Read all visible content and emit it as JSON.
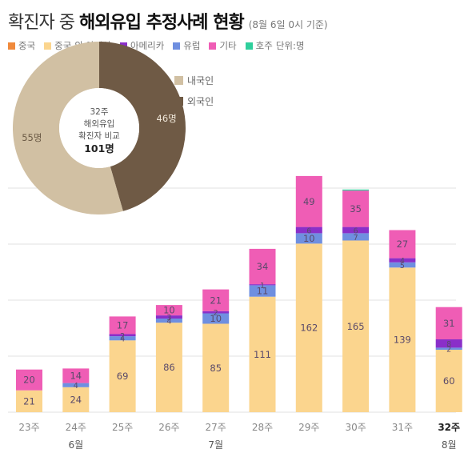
{
  "title": {
    "part1": "확진자 중",
    "part2": "해외유입 추정사례 현황",
    "note": "(8월 6일 0시 기준)"
  },
  "colors": {
    "china": "#f08a3c",
    "asia": "#fbd58e",
    "americas": "#8a2fc9",
    "europe": "#6f8fe0",
    "other": "#ef5db5",
    "oceania": "#2fcf9c",
    "domestic": "#d1c0a3",
    "foreign": "#6f5a45",
    "grid": "#e2e2e2",
    "label": "#666666"
  },
  "chart_data": [
    {
      "type": "bar",
      "stacked": true,
      "categories": [
        "23주",
        "24주",
        "25주",
        "26주",
        "27주",
        "28주",
        "29주",
        "30주",
        "31주",
        "32주"
      ],
      "month_labels": [
        {
          "label": "6월",
          "under": "24주"
        },
        {
          "label": "7월",
          "under": "27주"
        },
        {
          "label": "8월",
          "under": "32주"
        }
      ],
      "series": [
        {
          "name": "중국",
          "color_key": "china",
          "values": [
            0,
            0,
            0,
            0,
            0,
            0,
            0,
            0,
            0,
            0
          ]
        },
        {
          "name": "중국 외 아시아",
          "color_key": "asia",
          "values": [
            21,
            24,
            69,
            86,
            85,
            111,
            162,
            165,
            139,
            60
          ]
        },
        {
          "name": "아메리카",
          "color_key": "americas",
          "values": [
            0,
            0,
            2,
            3,
            2,
            1,
            6,
            6,
            4,
            8
          ]
        },
        {
          "name": "유럽",
          "color_key": "europe",
          "values": [
            0,
            4,
            4,
            4,
            10,
            11,
            10,
            7,
            5,
            2
          ]
        },
        {
          "name": "기타",
          "color_key": "other",
          "values": [
            20,
            14,
            17,
            10,
            21,
            34,
            49,
            35,
            27,
            31
          ]
        },
        {
          "name": "호주",
          "color_key": "oceania",
          "values": [
            0,
            0,
            0,
            0,
            0,
            0,
            0,
            1,
            0,
            0
          ]
        }
      ],
      "data_labels": [
        [
          "21",
          "",
          "",
          "20"
        ],
        [
          "24",
          "",
          "4",
          "14"
        ],
        [
          "69",
          "2",
          "4",
          "17"
        ],
        [
          "86",
          "3",
          "4",
          "10"
        ],
        [
          "85",
          "2",
          "10",
          "21"
        ],
        [
          "111",
          "1",
          "11",
          "34"
        ],
        [
          "162",
          "6",
          "10",
          "49"
        ],
        [
          "165",
          "6",
          "7",
          "35"
        ],
        [
          "139",
          "4",
          "5",
          "27"
        ],
        [
          "60",
          "8",
          "2",
          "31"
        ]
      ],
      "legend_unit": "단위:명",
      "grid": true,
      "ylim": [
        0,
        250
      ]
    },
    {
      "type": "pie",
      "donut": true,
      "center_text": [
        "32주",
        "해외유입",
        "확진자 비교",
        "101명"
      ],
      "labels": [
        "내국인",
        "외국인"
      ],
      "values": [
        55,
        46
      ],
      "value_labels": [
        "55명",
        "46명"
      ],
      "color_keys": [
        "domestic",
        "foreign"
      ]
    }
  ]
}
